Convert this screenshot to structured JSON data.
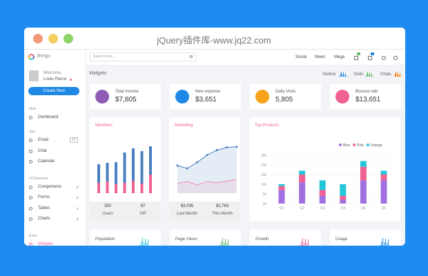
{
  "window": {
    "title": "jQuery插件库-www.jq22.com"
  },
  "sidebar": {
    "brand": "Brego",
    "welcome": "Welcome,",
    "user": "Louie Pierce",
    "button": "Create New",
    "sections": [
      {
        "title": "Main",
        "items": [
          {
            "label": "Dashboard"
          }
        ]
      },
      {
        "title": "App",
        "items": [
          {
            "label": "Email",
            "badge": "12"
          },
          {
            "label": "Chat"
          },
          {
            "label": "Calendar"
          }
        ]
      },
      {
        "title": "UI Elements",
        "items": [
          {
            "label": "Components"
          },
          {
            "label": "Forms"
          },
          {
            "label": "Tables"
          },
          {
            "label": "Charts"
          }
        ]
      },
      {
        "title": "Extra",
        "items": [
          {
            "label": "Widgets"
          }
        ]
      }
    ]
  },
  "topbar": {
    "search": "Search here...",
    "menu": [
      "Social",
      "News",
      "Mega"
    ]
  },
  "page": {
    "title": "Widgets",
    "quick": [
      "Visitors",
      "Visits",
      "Chats"
    ]
  },
  "stats": [
    {
      "label": "Total income",
      "value": "$7,805",
      "color": "#8e5cb5"
    },
    {
      "label": "New expense",
      "value": "$3,651",
      "color": "#1e88e5"
    },
    {
      "label": "Daily Visits",
      "value": "5,805",
      "color": "#f7a21b"
    },
    {
      "label": "Bounce rate",
      "value": "$13,651",
      "color": "#f06292"
    }
  ],
  "members": {
    "title": "Members",
    "ylim": [
      0,
      70
    ],
    "series": [
      {
        "color": "#f06292",
        "values": [
          15,
          17,
          13,
          15,
          18,
          14,
          27
        ]
      },
      {
        "color": "#4a7fc1",
        "values": [
          27,
          27,
          32,
          44,
          47,
          47,
          41
        ]
      }
    ],
    "footer": [
      {
        "value": "350",
        "label": "Users"
      },
      {
        "value": "87",
        "label": "VIP"
      }
    ]
  },
  "marketing": {
    "title": "Marketing",
    "ylim": [
      0,
      100
    ],
    "series": [
      {
        "color": "#4a7fc1",
        "values": [
          50,
          45,
          56,
          69,
          78,
          83,
          84
        ]
      },
      {
        "color": "#f48fb1",
        "values": [
          18,
          21,
          15,
          21,
          19,
          22,
          25
        ]
      }
    ],
    "footer": [
      {
        "value": "$3,095",
        "label": "Last Month"
      },
      {
        "value": "$2,763",
        "label": "This Month"
      }
    ]
  },
  "chart_data": {
    "type": "bar",
    "stacked": true,
    "title": "Top Products",
    "categories": [
      "Q1",
      "Q2",
      "Q3",
      "Q4",
      "Q5",
      "Q6"
    ],
    "series": [
      {
        "name": "Blue",
        "color": "#a070e0",
        "values": [
          7,
          11,
          4,
          2,
          12,
          12
        ]
      },
      {
        "name": "Pink",
        "color": "#f06292",
        "values": [
          2,
          4,
          3,
          2,
          7,
          3
        ]
      },
      {
        "name": "Orange",
        "color": "#26c6da",
        "values": [
          1,
          2,
          5,
          6,
          3,
          2
        ]
      }
    ],
    "ylim": [
      0,
      25
    ],
    "yticks": [
      {
        "value": 0,
        "label": "0k"
      },
      {
        "value": 5,
        "label": "5k"
      },
      {
        "value": 10,
        "label": "10k"
      },
      {
        "value": 15,
        "label": "15k"
      },
      {
        "value": 20,
        "label": "20k"
      },
      {
        "value": 25,
        "label": "25k"
      }
    ],
    "grid": true,
    "legend": "top-right"
  },
  "bottom": [
    "Population",
    "Page Views",
    "Growth",
    "Usage"
  ]
}
